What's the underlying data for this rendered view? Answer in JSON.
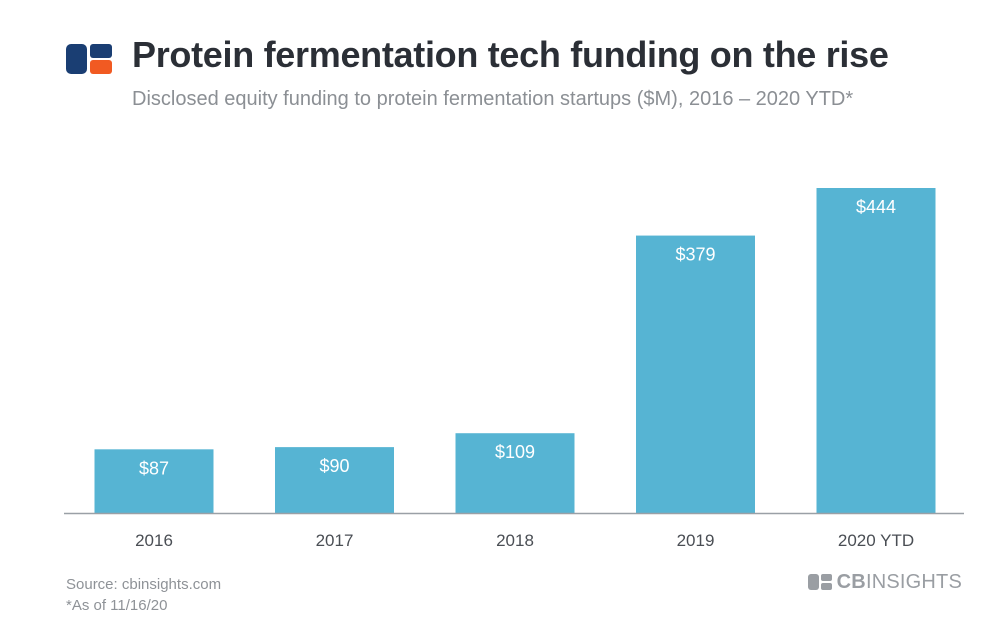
{
  "header": {
    "title": "Protein fermentation tech funding on the rise",
    "subtitle": "Disclosed equity funding to protein fermentation startups ($M), 2016 – 2020 YTD*"
  },
  "footer": {
    "source": "Source: cbinsights.com",
    "note": "*As of 11/16/20",
    "brand_bold": "CB",
    "brand_light": "INSIGHTS"
  },
  "colors": {
    "bar": "#56b4d3",
    "logo_blue": "#1a3e73",
    "logo_orange": "#f15a22",
    "axis": "#9aa0a6"
  },
  "chart_data": {
    "type": "bar",
    "title": "Protein fermentation tech funding on the rise",
    "subtitle": "Disclosed equity funding to protein fermentation startups ($M), 2016 – 2020 YTD*",
    "categories": [
      "2016",
      "2017",
      "2018",
      "2019",
      "2020 YTD"
    ],
    "values": [
      87,
      90,
      109,
      379,
      444
    ],
    "data_labels": [
      "$87",
      "$90",
      "$109",
      "$379",
      "$444"
    ],
    "xlabel": "",
    "ylabel": "",
    "ylim": [
      0,
      444
    ],
    "grid": false,
    "legend": "none"
  }
}
